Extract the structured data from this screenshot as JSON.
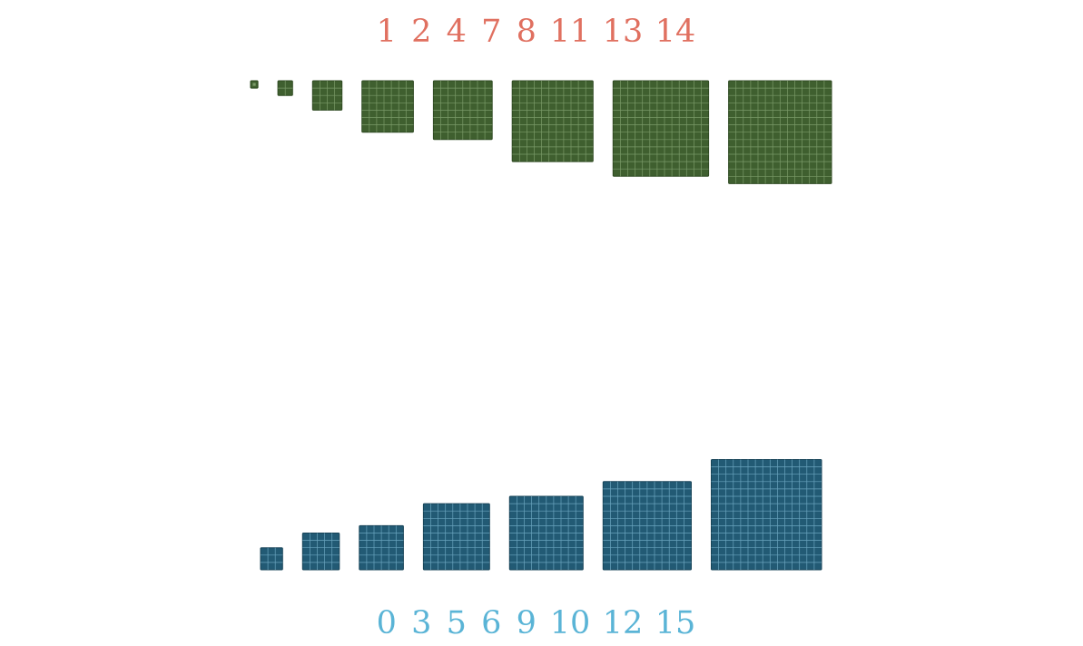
{
  "colors": {
    "background": "#ffffff",
    "top_numbers": "#e07060",
    "top_square_fill": "#3f5f2f",
    "top_grid": "#7a9a68",
    "top_border": "#2f4a22",
    "bottom_numbers": "#5ab4d6",
    "bottom_square_fill": "#225a74",
    "bottom_grid": "#6aa4be",
    "bottom_border": "#184458"
  },
  "top_group": {
    "numbers": [
      "1",
      "2",
      "4",
      "7",
      "8",
      "11",
      "13",
      "14"
    ],
    "sizes": [
      1,
      2,
      4,
      7,
      8,
      11,
      13,
      14
    ]
  },
  "bottom_group": {
    "numbers": [
      "0",
      "3",
      "5",
      "6",
      "9",
      "10",
      "12",
      "15"
    ],
    "sizes": [
      0,
      3,
      5,
      6,
      9,
      10,
      12,
      15
    ]
  }
}
